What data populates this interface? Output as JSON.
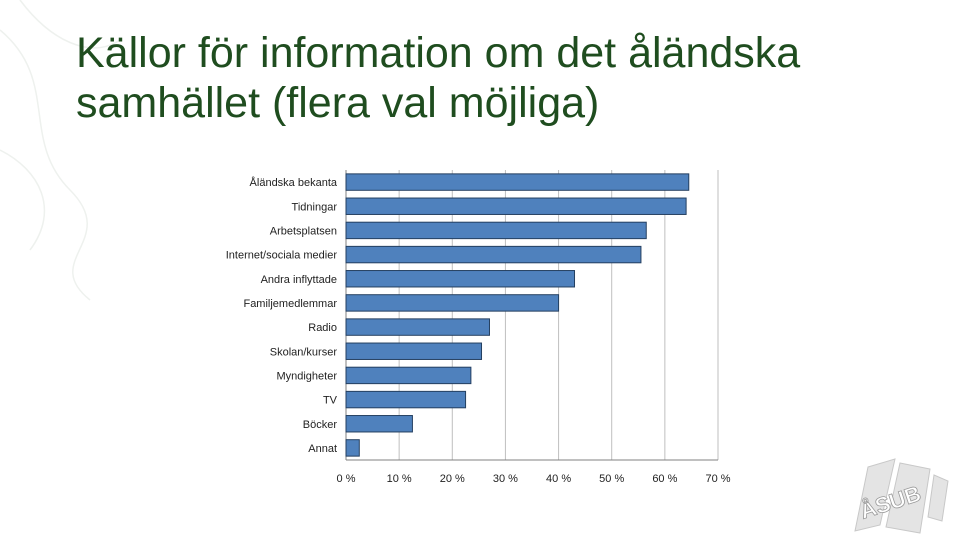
{
  "slide": {
    "title_line1": "Källor för information om det åländska",
    "title_line2": "samhället (flera val möjliga)"
  },
  "colors": {
    "title": "#1f4d1f",
    "bar_fill": "#4f81bd",
    "bar_stroke": "#243f60",
    "grid": "#bfbfbf",
    "axis": "#808080"
  },
  "logo": {
    "icon": "asub-logo-icon",
    "text": "ÅSUB"
  },
  "chart_data": {
    "type": "bar",
    "orientation": "horizontal",
    "categories": [
      "Åländska bekanta",
      "Tidningar",
      "Arbetsplatsen",
      "Internet/sociala medier",
      "Andra inflyttade",
      "Familjemedlemmar",
      "Radio",
      "Skolan/kurser",
      "Myndigheter",
      "TV",
      "Böcker",
      "Annat"
    ],
    "values": [
      64.5,
      64,
      56.5,
      55.5,
      43,
      40,
      27,
      25.5,
      23.5,
      22.5,
      12.5,
      2.5
    ],
    "xlim": [
      0,
      70
    ],
    "xticks": [
      "0 %",
      "10 %",
      "20 %",
      "30 %",
      "40 %",
      "50 %",
      "60 %",
      "70 %"
    ],
    "grid": true
  }
}
